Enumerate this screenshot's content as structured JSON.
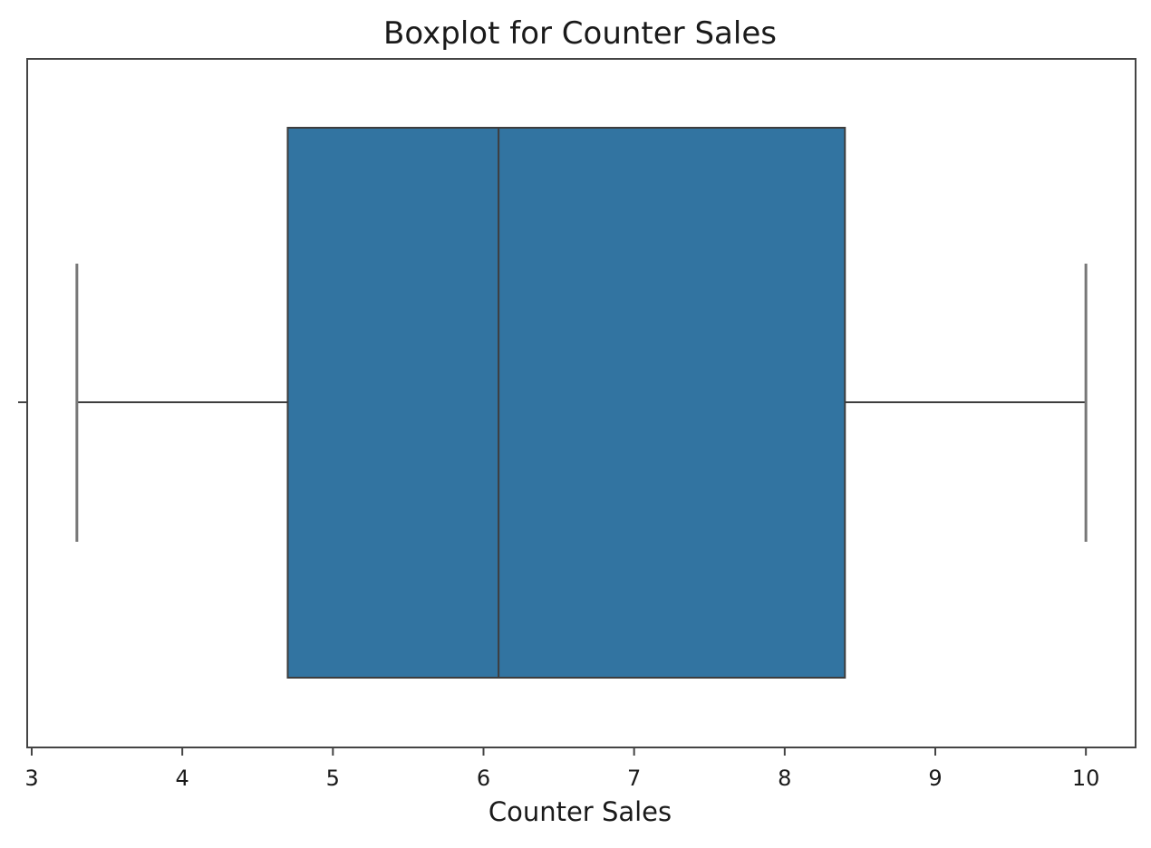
{
  "chart_data": {
    "type": "boxplot",
    "title": "Boxplot for Counter Sales",
    "xlabel": "Counter Sales",
    "ylabel": "",
    "xlim": [
      2.97,
      10.33
    ],
    "xticks": [
      3,
      4,
      5,
      6,
      7,
      8,
      9,
      10
    ],
    "xtick_labels": [
      "3",
      "4",
      "5",
      "6",
      "7",
      "8",
      "9",
      "10"
    ],
    "grid": false,
    "orientation": "horizontal",
    "box": {
      "whisker_low": 3.3,
      "q1": 4.7,
      "median": 6.1,
      "q3": 8.4,
      "whisker_high": 10.0
    },
    "colors": {
      "box_fill": "#3274a1",
      "line": "#3d3d3d",
      "whisker": "#777777",
      "axes": "#444444"
    }
  }
}
